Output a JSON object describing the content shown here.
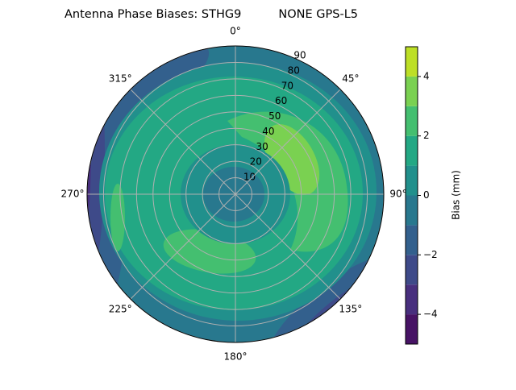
{
  "chart_data": {
    "type": "polar_contour",
    "title": "Antenna Phase Biases: STHG9          NONE GPS-L5",
    "theta_zero": "N",
    "theta_direction": "clockwise",
    "thetaticks": [
      {
        "value": 0,
        "label": "0°"
      },
      {
        "value": 45,
        "label": "45°"
      },
      {
        "value": 90,
        "label": "90°"
      },
      {
        "value": 135,
        "label": "135°"
      },
      {
        "value": 180,
        "label": "180°"
      },
      {
        "value": 225,
        "label": "225°"
      },
      {
        "value": 270,
        "label": "270°"
      },
      {
        "value": 315,
        "label": "315°"
      }
    ],
    "rlim": [
      0,
      90
    ],
    "rticks": [
      10,
      20,
      30,
      40,
      50,
      60,
      70,
      80,
      90
    ],
    "grid": true,
    "colorbar_label": "Bias (mm)",
    "levels": [
      -5,
      -4,
      -3,
      -2,
      -1,
      0,
      1,
      2,
      3,
      4,
      5
    ],
    "colors": [
      "#471365",
      "#482f7e",
      "#3e4a89",
      "#33608d",
      "#28788e",
      "#21908c",
      "#23a884",
      "#44bf70",
      "#7ad151",
      "#bddf26"
    ],
    "clim": [
      -5,
      5
    ],
    "cticks": [
      {
        "value": -4,
        "label": "−4"
      },
      {
        "value": -2,
        "label": "−2"
      },
      0,
      2,
      4
    ]
  }
}
